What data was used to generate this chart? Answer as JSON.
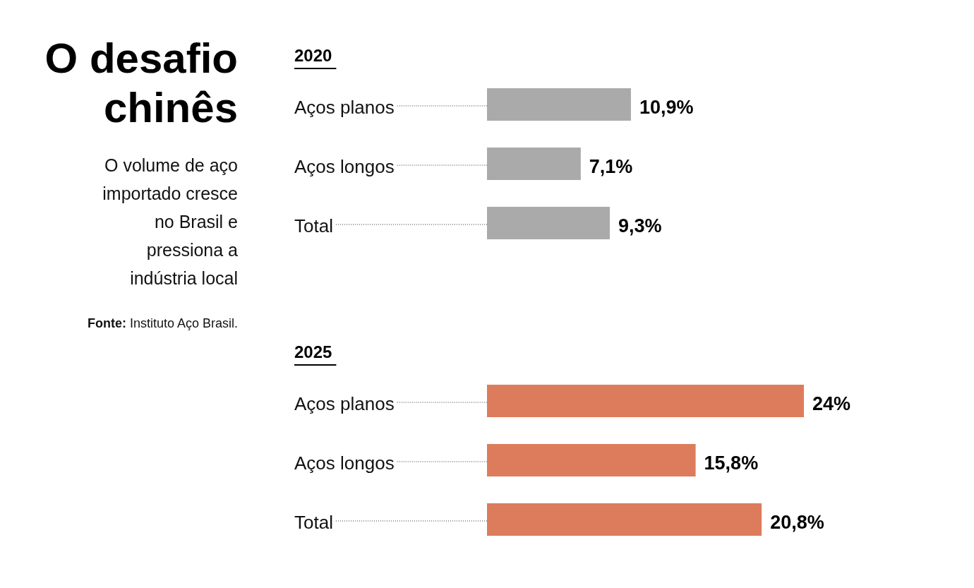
{
  "chart_data": [
    {
      "type": "other",
      "title": "O desafio chinês",
      "subtitle": "O volume de aço importado cresce no Brasil e pressiona a indústria local",
      "annotations": [
        "Fonte: Instituto Aço Brasil."
      ]
    },
    {
      "type": "bar",
      "orientation": "horizontal",
      "title": "2020",
      "categories": [
        "Aços planos",
        "Aços longos",
        "Total"
      ],
      "values": [
        10.9,
        7.1,
        9.3
      ],
      "value_labels": [
        "10,9%",
        "7,1%",
        "9,3%"
      ],
      "color": "#aaaaaa"
    },
    {
      "type": "bar",
      "orientation": "horizontal",
      "title": "2025",
      "categories": [
        "Aços planos",
        "Aços longos",
        "Total"
      ],
      "values": [
        24,
        15.8,
        20.8
      ],
      "value_labels": [
        "24%",
        "15,8%",
        "20,8%"
      ],
      "color": "#dd7c5c"
    }
  ]
}
